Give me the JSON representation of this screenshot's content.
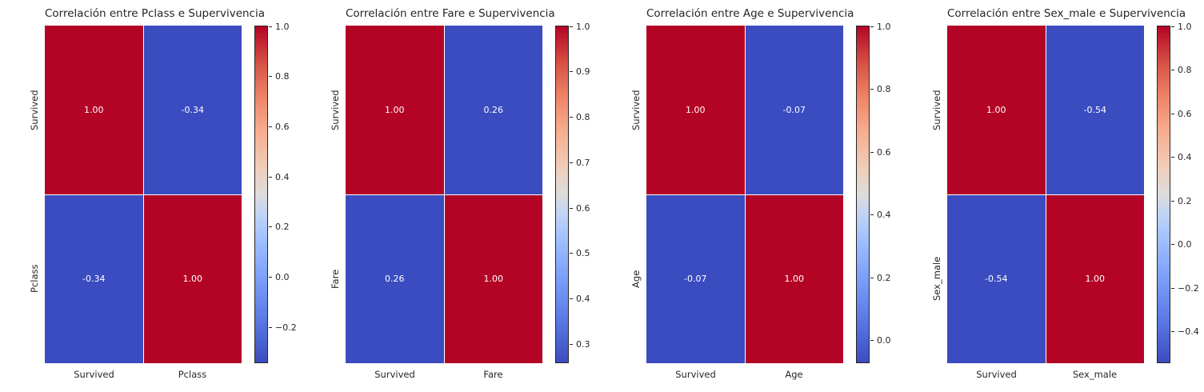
{
  "colors": {
    "heat_max": "#b40426",
    "heat_min": "#3a4cc0",
    "annotation": "#ffffff",
    "text": "#262626",
    "background": "#ffffff"
  },
  "chart_data": [
    {
      "type": "heatmap",
      "title": "Correlación entre Pclass e Supervivencia",
      "labels": [
        "Survived",
        "Pclass"
      ],
      "matrix": [
        [
          1.0,
          -0.34
        ],
        [
          -0.34,
          1.0
        ]
      ],
      "annotations": [
        [
          "1.00",
          "-0.34"
        ],
        [
          "-0.34",
          "1.00"
        ]
      ],
      "colorbar": {
        "vmin": -0.34,
        "vmax": 1.0,
        "ticks": [
          1.0,
          0.8,
          0.6,
          0.4,
          0.2,
          0.0,
          -0.2
        ],
        "tick_labels": [
          "1.0",
          "0.8",
          "0.6",
          "0.4",
          "0.2",
          "0.0",
          "−0.2"
        ]
      }
    },
    {
      "type": "heatmap",
      "title": "Correlación entre Fare e Supervivencia",
      "labels": [
        "Survived",
        "Fare"
      ],
      "matrix": [
        [
          1.0,
          0.26
        ],
        [
          0.26,
          1.0
        ]
      ],
      "annotations": [
        [
          "1.00",
          "0.26"
        ],
        [
          "0.26",
          "1.00"
        ]
      ],
      "colorbar": {
        "vmin": 0.26,
        "vmax": 1.0,
        "ticks": [
          1.0,
          0.9,
          0.8,
          0.7,
          0.6,
          0.5,
          0.4,
          0.3
        ],
        "tick_labels": [
          "1.0",
          "0.9",
          "0.8",
          "0.7",
          "0.6",
          "0.5",
          "0.4",
          "0.3"
        ]
      }
    },
    {
      "type": "heatmap",
      "title": "Correlación entre Age e Supervivencia",
      "labels": [
        "Survived",
        "Age"
      ],
      "matrix": [
        [
          1.0,
          -0.07
        ],
        [
          -0.07,
          1.0
        ]
      ],
      "annotations": [
        [
          "1.00",
          "-0.07"
        ],
        [
          "-0.07",
          "1.00"
        ]
      ],
      "colorbar": {
        "vmin": -0.07,
        "vmax": 1.0,
        "ticks": [
          1.0,
          0.8,
          0.6,
          0.4,
          0.2,
          0.0
        ],
        "tick_labels": [
          "1.0",
          "0.8",
          "0.6",
          "0.4",
          "0.2",
          "0.0"
        ]
      }
    },
    {
      "type": "heatmap",
      "title": "Correlación entre Sex_male e Supervivencia",
      "labels": [
        "Survived",
        "Sex_male"
      ],
      "matrix": [
        [
          1.0,
          -0.54
        ],
        [
          -0.54,
          1.0
        ]
      ],
      "annotations": [
        [
          "1.00",
          "-0.54"
        ],
        [
          "-0.54",
          "1.00"
        ]
      ],
      "colorbar": {
        "vmin": -0.54,
        "vmax": 1.0,
        "ticks": [
          1.0,
          0.8,
          0.6,
          0.4,
          0.2,
          0.0,
          -0.2,
          -0.4
        ],
        "tick_labels": [
          "1.0",
          "0.8",
          "0.6",
          "0.4",
          "0.2",
          "0.0",
          "−0.2",
          "−0.4"
        ]
      }
    }
  ]
}
